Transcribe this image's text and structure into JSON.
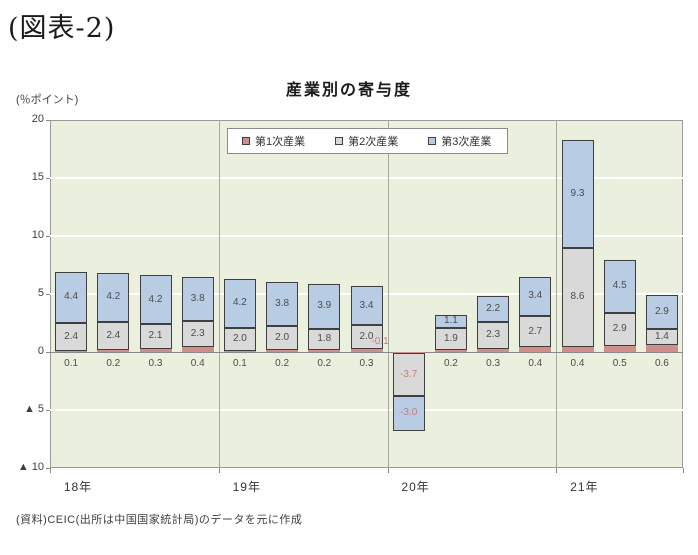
{
  "page": {
    "figure_label": "(図表-2)",
    "source": "(資料)CEIC(出所は中国国家統計局)のデータを元に作成"
  },
  "chart_data": {
    "type": "bar",
    "stacked": true,
    "title": "産業別の寄与度",
    "unit_label": "(％ポイント)",
    "ylim": [
      -10,
      20
    ],
    "ytick_values": [
      20,
      15,
      10,
      5,
      0,
      -5,
      -10
    ],
    "ytick_labels": [
      "20",
      "15",
      "10",
      "5",
      "0",
      "▲ 5",
      "▲ 10"
    ],
    "grid": true,
    "legend_position": "top-inside",
    "x_groups": [
      {
        "label": "18年",
        "bars": 4
      },
      {
        "label": "19年",
        "bars": 4
      },
      {
        "label": "20年",
        "bars": 4
      },
      {
        "label": "21年",
        "bars": 3
      }
    ],
    "series": [
      {
        "name": "第1次産業",
        "color": "#cf8e8a",
        "values": [
          0.1,
          0.2,
          0.3,
          0.4,
          0.1,
          0.2,
          0.2,
          0.3,
          -0.1,
          0.2,
          0.3,
          0.4,
          0.4,
          0.5,
          0.6
        ]
      },
      {
        "name": "第2次産業",
        "color": "#d9d9d9",
        "values": [
          2.4,
          2.4,
          2.1,
          2.3,
          2.0,
          2.0,
          1.8,
          2.0,
          -3.7,
          1.9,
          2.3,
          2.7,
          8.6,
          2.9,
          1.4
        ]
      },
      {
        "name": "第3次産業",
        "color": "#b8cce4",
        "values": [
          4.4,
          4.2,
          4.2,
          3.8,
          4.2,
          3.8,
          3.9,
          3.4,
          -3.0,
          1.1,
          2.2,
          3.4,
          9.3,
          4.5,
          2.9
        ]
      }
    ],
    "colors": {
      "plot_background": "#ebefdd",
      "gridline": "#ffffff",
      "separator": "#a5a99d",
      "plot_border": "#999999",
      "zero_line": "#8a8a8a",
      "segment_border": "#3f3f3f",
      "value_label": "#4d4d4d",
      "negative_label": "#cb7b77"
    }
  }
}
